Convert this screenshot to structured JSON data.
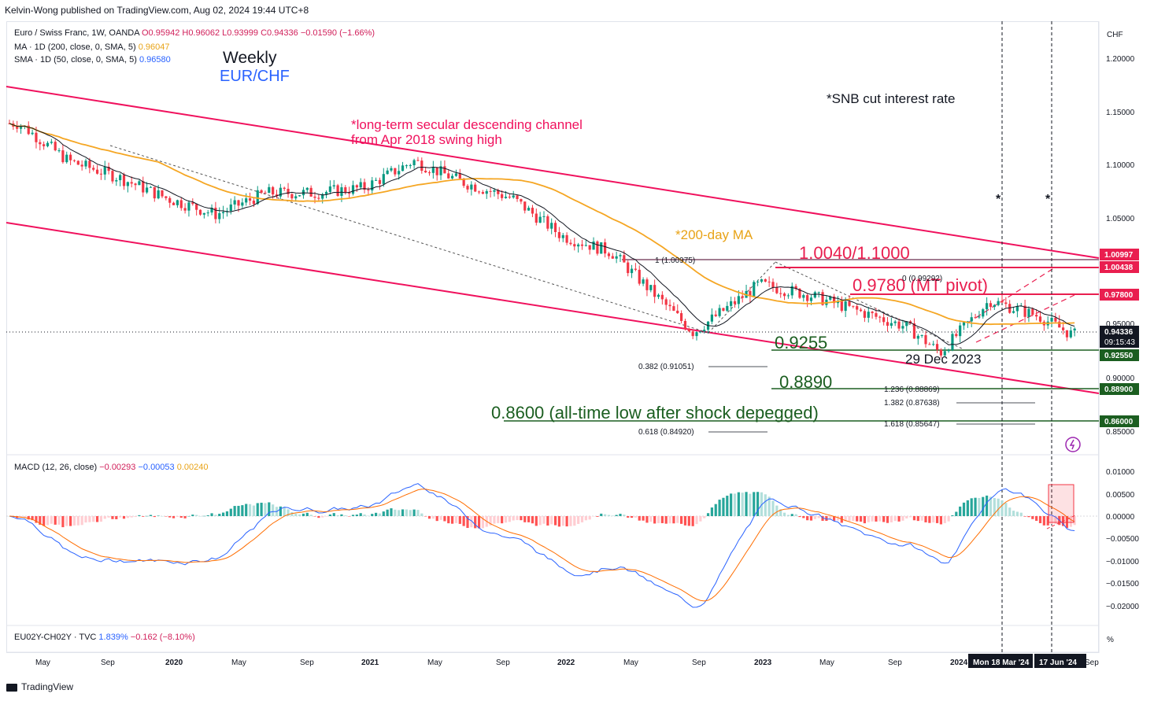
{
  "header": {
    "publisher": "Kelvin-Wong published on TradingView.com, Aug 02, 2024 19:44 UTC+8"
  },
  "legend": {
    "symbol": "Euro / Swiss Franc, 1W, OANDA",
    "ohlc": "O0.95942 H0.96062 L0.93999 C0.94336 −0.01590 (−1.66%)",
    "ma200_label": "MA · 1D (200, close, 0, SMA, 5)",
    "ma200_value": "0.96047",
    "sma50_label": "SMA · 1D (50, close, 0, SMA, 5)",
    "sma50_value": "0.96580"
  },
  "titles": {
    "main": "Weekly",
    "pair": "EUR/CHF"
  },
  "annotations": {
    "channel_line1": "*long-term secular descending channel",
    "channel_line2": "from Apr 2018 swing high",
    "snb": "*SNB cut interest rate",
    "ma200": "*200-day MA",
    "resistance": "1.0040/1.1000",
    "pivot": "0.9780 (MT pivot)",
    "support1": "0.9255",
    "dec_date": "29 Dec 2023",
    "support2": "0.8890",
    "support3": "0.8600 (all-time low after shock depegged)",
    "star1": "*",
    "star2": "*"
  },
  "fib_labels": {
    "f_high": "1 (1.00975)",
    "f_zero": "0 (0.99292)",
    "f382": "0.382 (0.91051)",
    "f618": "0.618 (0.84920)",
    "f1236": "1.236 (0.88869)",
    "f1382": "1.382 (0.87638)",
    "f1618": "1.618 (0.85647)"
  },
  "price_axis": {
    "currency": "CHF",
    "ticks": [
      "1.20000",
      "1.15000",
      "1.10000",
      "1.05000",
      "0.95000",
      "0.90000",
      "0.85000"
    ],
    "tags": {
      "t1": "1.00997",
      "t2": "1.00438",
      "t3": "0.97800",
      "last": "0.94336",
      "countdown": "09:15:43",
      "t4": "0.92550",
      "t5": "0.88900",
      "t6": "0.86000"
    }
  },
  "macd_panel": {
    "label": "MACD (12, 26, close)",
    "hist": "−0.00293",
    "macd": "−0.00053",
    "signal": "0.00240",
    "ticks": [
      "0.01000",
      "0.00500",
      "0.00000",
      "−0.00500",
      "−0.01000",
      "−0.01500",
      "−0.02000"
    ]
  },
  "spread_panel": {
    "label": "EU02Y-CH02Y · TVC",
    "value": "1.839%",
    "change": "−0.162 (−8.10%)",
    "axis_unit": "%"
  },
  "time_axis": {
    "labels": [
      "May",
      "Sep",
      "2020",
      "May",
      "Sep",
      "2021",
      "May",
      "Sep",
      "2022",
      "May",
      "Sep",
      "2023",
      "May",
      "Sep",
      "2024",
      "Sep"
    ],
    "markers": [
      "Mon 18 Mar '24",
      "17 Jun '24"
    ]
  },
  "footer": {
    "brand": "TradingView"
  },
  "colors": {
    "up": "#089981",
    "down": "#f23645",
    "sma50": "#f5a623",
    "sma20": "#131722",
    "channel": "#f0115d",
    "macd": "#2962ff",
    "signal": "#ff6d00",
    "support": "#1b5e20"
  },
  "chart_data": {
    "type": "candlestick",
    "title": "Euro / Swiss Franc, 1W, OANDA",
    "ylim": [
      0.835,
      1.215
    ],
    "approx_close_path": [
      {
        "date": "2019-04",
        "close": 1.14
      },
      {
        "date": "2019-07",
        "close": 1.105
      },
      {
        "date": "2019-10",
        "close": 1.09
      },
      {
        "date": "2020-01",
        "close": 1.07
      },
      {
        "date": "2020-04",
        "close": 1.055
      },
      {
        "date": "2020-07",
        "close": 1.075
      },
      {
        "date": "2020-10",
        "close": 1.075
      },
      {
        "date": "2021-01",
        "close": 1.08
      },
      {
        "date": "2021-04",
        "close": 1.105
      },
      {
        "date": "2021-07",
        "close": 1.085
      },
      {
        "date": "2021-10",
        "close": 1.07
      },
      {
        "date": "2022-01",
        "close": 1.035
      },
      {
        "date": "2022-04",
        "close": 1.02
      },
      {
        "date": "2022-07",
        "close": 0.975
      },
      {
        "date": "2022-09",
        "close": 0.945
      },
      {
        "date": "2023-01",
        "close": 0.99
      },
      {
        "date": "2023-04",
        "close": 0.98
      },
      {
        "date": "2023-07",
        "close": 0.965
      },
      {
        "date": "2023-10",
        "close": 0.95
      },
      {
        "date": "2023-12",
        "close": 0.926
      },
      {
        "date": "2024-03",
        "close": 0.975
      },
      {
        "date": "2024-06",
        "close": 0.96
      },
      {
        "date": "2024-08",
        "close": 0.943
      }
    ]
  }
}
